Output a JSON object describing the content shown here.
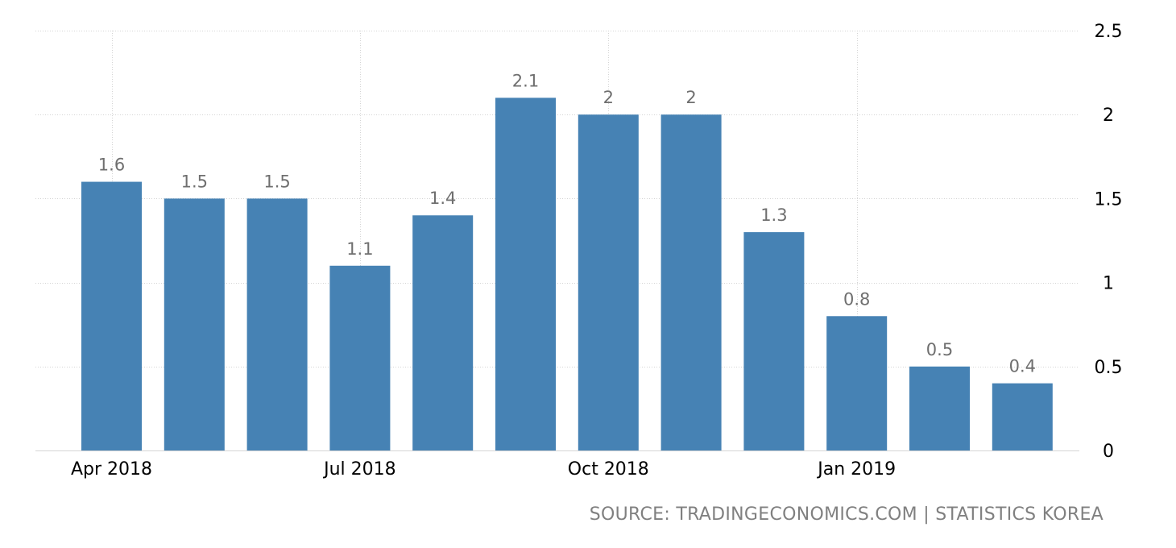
{
  "chart_data": {
    "type": "bar",
    "title": "",
    "xlabel": "",
    "ylabel": "",
    "categories": [
      "Apr 2018",
      "May 2018",
      "Jun 2018",
      "Jul 2018",
      "Aug 2018",
      "Sep 2018",
      "Oct 2018",
      "Nov 2018",
      "Dec 2018",
      "Jan 2019",
      "Feb 2019",
      "Mar 2019"
    ],
    "values": [
      1.6,
      1.5,
      1.5,
      1.1,
      1.4,
      2.1,
      2.0,
      2.0,
      1.3,
      0.8,
      0.5,
      0.4
    ],
    "data_labels": [
      "1.6",
      "1.5",
      "1.5",
      "1.1",
      "1.4",
      "2.1",
      "2",
      "2",
      "1.3",
      "0.8",
      "0.5",
      "0.4"
    ],
    "x_tick_labels": [
      {
        "category_index": 0,
        "label": "Apr 2018"
      },
      {
        "category_index": 3,
        "label": "Jul 2018"
      },
      {
        "category_index": 6,
        "label": "Oct 2018"
      },
      {
        "category_index": 9,
        "label": "Jan 2019"
      }
    ],
    "y_ticks": [
      0,
      0.5,
      1,
      1.5,
      2,
      2.5
    ],
    "y_tick_labels": [
      "0",
      "0.5",
      "1",
      "1.5",
      "2",
      "2.5"
    ],
    "ylim": [
      0,
      2.5
    ],
    "y_axis_side": "right",
    "grid": true,
    "bar_color": "#4682b4",
    "label_color": "#6f6f6f",
    "grid_color": "#d4d4d4"
  },
  "source_text": "SOURCE: TRADINGECONOMICS.COM | STATISTICS KOREA"
}
